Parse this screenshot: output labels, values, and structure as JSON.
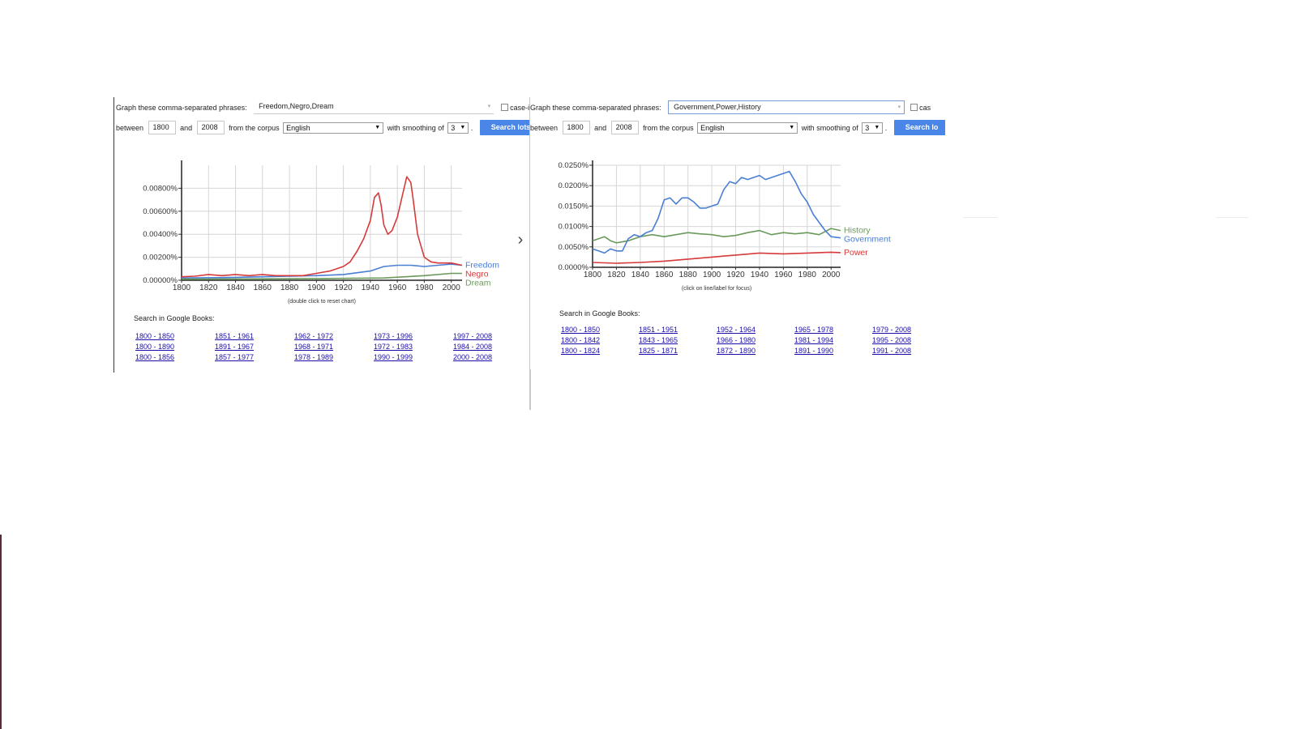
{
  "colors": {
    "blue": "#4a7fd4",
    "red": "#d63a3a",
    "green": "#6a9a5a",
    "button": "#4a86e8",
    "link": "#1a0dab"
  },
  "icons": {
    "next": "chevron-right-icon",
    "dropdown": "caret-down-icon"
  },
  "left": {
    "phrases_label": "Graph these comma-separated phrases:",
    "phrases_value": "Freedom,Negro,Dream",
    "case_label": "case-i",
    "between_label": "between",
    "from_year": "1800",
    "and_label": "and",
    "to_year": "2008",
    "corpus_label": "from the corpus",
    "corpus_value": "English",
    "smoothing_label": "with smoothing of",
    "smoothing_value": "3",
    "period": ".",
    "search_button": "Search lots o",
    "chart_caption": "(double click to reset chart)",
    "books_label": "Search in Google Books:",
    "book_links": [
      "1800 - 1850",
      "1851 - 1961",
      "1962 - 1972",
      "1973 - 1996",
      "1997 - 2008",
      "1800 - 1890",
      "1891 - 1967",
      "1968 - 1971",
      "1972 - 1983",
      "1984 - 2008",
      "1800 - 1856",
      "1857 - 1977",
      "1978 - 1989",
      "1990 - 1999",
      "2000 - 2008"
    ]
  },
  "right": {
    "phrases_label": "Graph these comma-separated phrases:",
    "phrases_value": "Government,Power,History",
    "case_label": "cas",
    "between_label": "between",
    "from_year": "1800",
    "and_label": "and",
    "to_year": "2008",
    "corpus_label": "from the corpus",
    "corpus_value": "English",
    "smoothing_label": "with smoothing of",
    "smoothing_value": "3",
    "period": ".",
    "search_button": "Search lo",
    "chart_caption": "(click on line/label for focus)",
    "books_label": "Search in Google Books:",
    "book_links": [
      "1800 - 1850",
      "1851 - 1951",
      "1952 - 1964",
      "1965 - 1978",
      "1979 - 2008",
      "1800 - 1842",
      "1843 - 1965",
      "1966 - 1980",
      "1981 - 1994",
      "1995 - 2008",
      "1800 - 1824",
      "1825 - 1871",
      "1872 - 1890",
      "1891 - 1990",
      "1991 - 2008"
    ]
  },
  "chart_data": [
    {
      "type": "line",
      "title": "",
      "xlabel": "",
      "ylabel": "",
      "xlim": [
        1800,
        2008
      ],
      "ylim": [
        0,
        0.01
      ],
      "x_ticks": [
        1800,
        1820,
        1840,
        1860,
        1880,
        1900,
        1920,
        1940,
        1960,
        1980,
        2000
      ],
      "y_ticks": [
        0,
        0.002,
        0.004,
        0.006,
        0.008
      ],
      "y_tick_labels": [
        "0.00000%",
        "0.00200%",
        "0.00400%",
        "0.00600%",
        "0.00800%"
      ],
      "legend_placement": "right (labels at line ends)",
      "grid": true,
      "series": [
        {
          "name": "Freedom",
          "color": "#4a7fd4",
          "x": [
            1800,
            1820,
            1840,
            1860,
            1880,
            1900,
            1920,
            1940,
            1950,
            1960,
            1970,
            1980,
            1990,
            2000,
            2008
          ],
          "y": [
            0.0002,
            0.00022,
            0.00025,
            0.0003,
            0.00035,
            0.0004,
            0.0005,
            0.0008,
            0.0012,
            0.0013,
            0.0013,
            0.0012,
            0.0013,
            0.0014,
            0.0013
          ]
        },
        {
          "name": "Negro",
          "color": "#d63a3a",
          "x": [
            1800,
            1810,
            1820,
            1830,
            1840,
            1850,
            1860,
            1870,
            1880,
            1890,
            1900,
            1910,
            1920,
            1925,
            1930,
            1935,
            1940,
            1943,
            1946,
            1948,
            1950,
            1953,
            1956,
            1960,
            1964,
            1967,
            1970,
            1972,
            1975,
            1980,
            1985,
            1990,
            2000,
            2008
          ],
          "y": [
            0.0003,
            0.00035,
            0.0005,
            0.0004,
            0.0005,
            0.0004,
            0.0005,
            0.0004,
            0.0004,
            0.0004,
            0.0006,
            0.0008,
            0.0012,
            0.0016,
            0.0025,
            0.0036,
            0.0052,
            0.0072,
            0.0076,
            0.0065,
            0.0048,
            0.004,
            0.0043,
            0.0055,
            0.0075,
            0.009,
            0.0085,
            0.0068,
            0.004,
            0.002,
            0.0016,
            0.0015,
            0.0015,
            0.0013
          ]
        },
        {
          "name": "Dream",
          "color": "#6a9a5a",
          "x": [
            1800,
            1850,
            1900,
            1950,
            1980,
            2000,
            2008
          ],
          "y": [
            0.0001,
            0.00012,
            0.00015,
            0.0002,
            0.0004,
            0.0006,
            0.0006
          ]
        }
      ]
    },
    {
      "type": "line",
      "title": "",
      "xlabel": "",
      "ylabel": "",
      "xlim": [
        1800,
        2008
      ],
      "ylim": [
        0,
        0.025
      ],
      "x_ticks": [
        1800,
        1820,
        1840,
        1860,
        1880,
        1900,
        1920,
        1940,
        1960,
        1980,
        2000
      ],
      "y_ticks": [
        0,
        0.005,
        0.01,
        0.015,
        0.02,
        0.025
      ],
      "y_tick_labels": [
        "0.0000%",
        "0.0050%",
        "0.0100%",
        "0.0150%",
        "0.0200%",
        "0.0250%"
      ],
      "legend_placement": "right (labels at line ends)",
      "grid": true,
      "series": [
        {
          "name": "History",
          "color": "#6a9a5a",
          "x": [
            1800,
            1805,
            1810,
            1815,
            1820,
            1830,
            1840,
            1850,
            1860,
            1870,
            1880,
            1890,
            1900,
            1910,
            1920,
            1930,
            1940,
            1950,
            1960,
            1970,
            1980,
            1990,
            2000,
            2008
          ],
          "y": [
            0.0065,
            0.007,
            0.0075,
            0.0065,
            0.006,
            0.0065,
            0.0075,
            0.008,
            0.0075,
            0.008,
            0.0085,
            0.0082,
            0.008,
            0.0075,
            0.0078,
            0.0085,
            0.009,
            0.008,
            0.0085,
            0.0082,
            0.0085,
            0.008,
            0.0095,
            0.009
          ]
        },
        {
          "name": "Government",
          "color": "#4a7fd4",
          "x": [
            1800,
            1805,
            1810,
            1815,
            1820,
            1825,
            1830,
            1835,
            1840,
            1845,
            1850,
            1855,
            1860,
            1865,
            1870,
            1875,
            1880,
            1885,
            1890,
            1895,
            1900,
            1905,
            1910,
            1915,
            1920,
            1925,
            1930,
            1935,
            1940,
            1945,
            1950,
            1955,
            1960,
            1965,
            1970,
            1975,
            1980,
            1985,
            1990,
            1995,
            2000,
            2008
          ],
          "y": [
            0.0045,
            0.004,
            0.0035,
            0.0045,
            0.004,
            0.004,
            0.007,
            0.008,
            0.0075,
            0.0085,
            0.009,
            0.012,
            0.0165,
            0.017,
            0.0155,
            0.017,
            0.017,
            0.016,
            0.0145,
            0.0145,
            0.015,
            0.0155,
            0.019,
            0.021,
            0.0205,
            0.022,
            0.0215,
            0.022,
            0.0225,
            0.0215,
            0.022,
            0.0225,
            0.023,
            0.0235,
            0.021,
            0.018,
            0.016,
            0.013,
            0.011,
            0.009,
            0.0075,
            0.0072
          ]
        },
        {
          "name": "Power",
          "color": "#d63a3a",
          "x": [
            1800,
            1820,
            1840,
            1860,
            1880,
            1900,
            1920,
            1940,
            1960,
            1980,
            2000,
            2008
          ],
          "y": [
            0.0012,
            0.001,
            0.0012,
            0.0015,
            0.002,
            0.0025,
            0.003,
            0.0035,
            0.0033,
            0.0035,
            0.0037,
            0.0036
          ]
        }
      ]
    }
  ]
}
